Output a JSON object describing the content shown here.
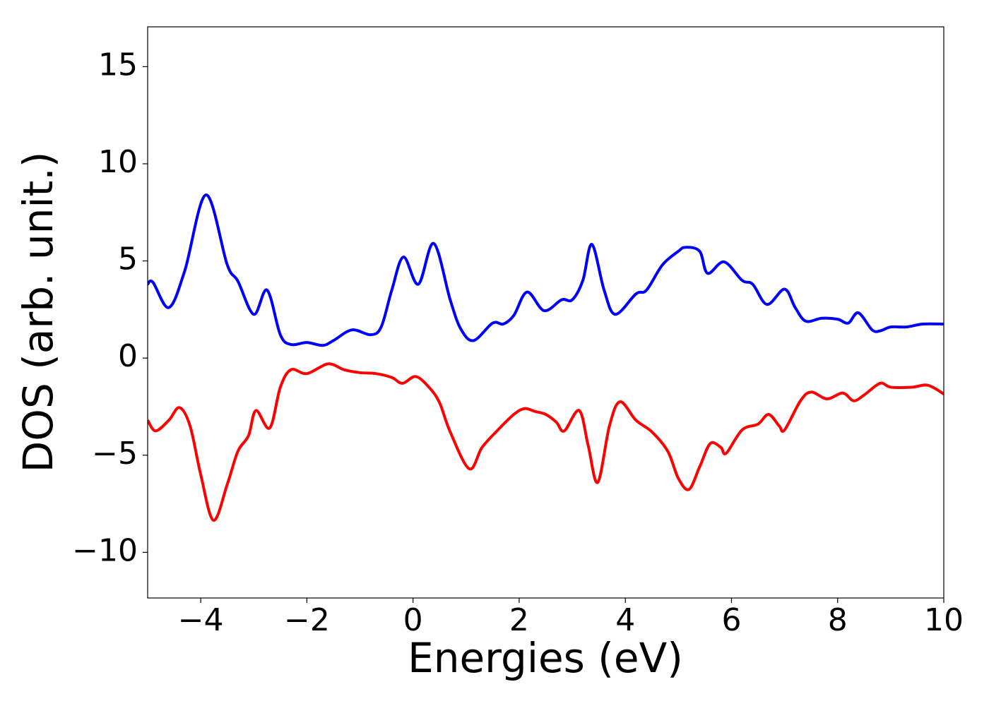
{
  "chart_data": {
    "type": "line",
    "x_label": "Energies (eV)",
    "y_label": "DOS (arb. unit.)",
    "xlim": [
      -5,
      10
    ],
    "ylim": [
      -12.35,
      17.05
    ],
    "xticks": [
      {
        "value": -4,
        "label": "−4"
      },
      {
        "value": -2,
        "label": "−2"
      },
      0,
      2,
      4,
      6,
      8,
      10
    ],
    "yticks": [
      {
        "value": -10,
        "label": "−10"
      },
      {
        "value": -5,
        "label": "−5"
      },
      0,
      5,
      10,
      15
    ],
    "grid": false,
    "series": [
      {
        "color": "#0000ff",
        "x": [
          -5,
          -4.9,
          -4.6,
          -4.3,
          -3.9,
          -3.5,
          -3.3,
          -3.0,
          -2.75,
          -2.5,
          -2.3,
          -2.0,
          -1.7,
          -1.5,
          -1.15,
          -0.8,
          -0.6,
          -0.4,
          -0.18,
          0.1,
          0.39,
          0.7,
          0.9,
          1.14,
          1.5,
          1.7,
          1.9,
          2.15,
          2.47,
          2.8,
          3.0,
          3.2,
          3.37,
          3.6,
          3.81,
          4.2,
          4.4,
          4.7,
          5.0,
          5.13,
          5.4,
          5.55,
          5.86,
          6.2,
          6.4,
          6.67,
          7.0,
          7.2,
          7.4,
          7.7,
          8.0,
          8.2,
          8.39,
          8.65,
          8.8,
          9.0,
          9.3,
          9.6,
          10
        ],
        "values": [
          3.8,
          3.9,
          2.6,
          4.5,
          8.4,
          4.8,
          3.96,
          2.25,
          3.5,
          1.2,
          0.7,
          0.8,
          0.65,
          0.9,
          1.45,
          1.2,
          1.6,
          3.5,
          5.2,
          3.8,
          5.9,
          3.0,
          1.5,
          0.9,
          1.8,
          1.75,
          2.2,
          3.4,
          2.44,
          3.0,
          3.0,
          4.0,
          5.85,
          3.5,
          2.25,
          3.3,
          3.5,
          4.8,
          5.5,
          5.7,
          5.5,
          4.36,
          4.95,
          4.0,
          3.8,
          2.76,
          3.55,
          2.6,
          1.9,
          2.05,
          2.0,
          1.8,
          2.33,
          1.45,
          1.4,
          1.6,
          1.6,
          1.75,
          1.75
        ]
      },
      {
        "color": "#ff0000",
        "x": [
          -5,
          -4.85,
          -4.6,
          -4.4,
          -4.2,
          -4.0,
          -3.76,
          -3.5,
          -3.3,
          -3.1,
          -2.96,
          -2.7,
          -2.5,
          -2.3,
          -2.0,
          -1.6,
          -1.3,
          -1.0,
          -0.7,
          -0.4,
          -0.2,
          0.05,
          0.3,
          0.5,
          0.7,
          1.06,
          1.3,
          1.6,
          1.9,
          2.1,
          2.3,
          2.5,
          2.7,
          2.85,
          3.13,
          3.3,
          3.48,
          3.7,
          3.9,
          4.2,
          4.5,
          4.8,
          5.0,
          5.2,
          5.4,
          5.6,
          5.8,
          5.9,
          6.2,
          6.5,
          6.7,
          6.9,
          7.0,
          7.3,
          7.5,
          7.8,
          8.1,
          8.3,
          8.5,
          8.8,
          9.0,
          9.4,
          9.7,
          10
        ],
        "values": [
          -3.2,
          -3.75,
          -3.2,
          -2.55,
          -3.5,
          -6.0,
          -8.35,
          -6.5,
          -4.8,
          -4.0,
          -2.7,
          -3.6,
          -1.5,
          -0.6,
          -0.8,
          -0.3,
          -0.6,
          -0.75,
          -0.8,
          -1.0,
          -1.3,
          -0.95,
          -1.5,
          -2.3,
          -3.8,
          -5.7,
          -4.6,
          -3.7,
          -2.9,
          -2.6,
          -2.75,
          -2.9,
          -3.3,
          -3.75,
          -2.7,
          -4.5,
          -6.4,
          -3.5,
          -2.25,
          -3.2,
          -3.8,
          -4.8,
          -6.2,
          -6.76,
          -5.6,
          -4.4,
          -4.6,
          -4.9,
          -3.7,
          -3.4,
          -2.9,
          -3.5,
          -3.7,
          -2.2,
          -1.75,
          -2.1,
          -1.8,
          -2.2,
          -1.9,
          -1.3,
          -1.5,
          -1.5,
          -1.4,
          -1.85
        ]
      }
    ]
  }
}
